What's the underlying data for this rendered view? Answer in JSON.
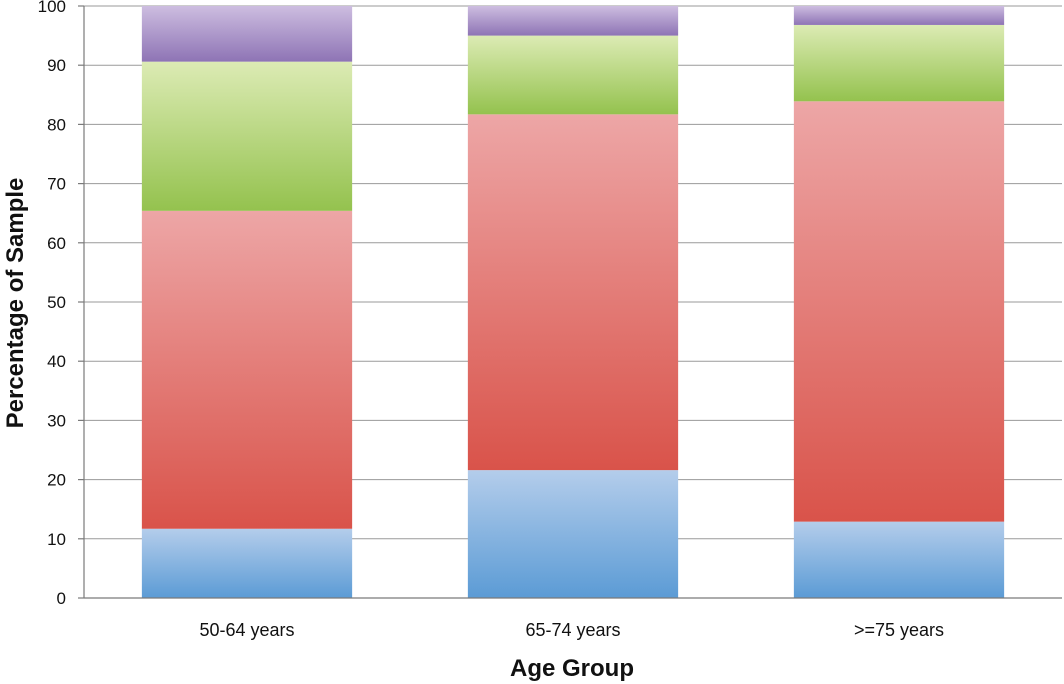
{
  "chart_data": {
    "type": "bar",
    "stacked": true,
    "title": "",
    "xlabel": "Age Group",
    "ylabel": "Percentage of Sample",
    "ylim": [
      0,
      100
    ],
    "yticks": [
      0,
      10,
      20,
      30,
      40,
      50,
      60,
      70,
      80,
      90,
      100
    ],
    "grid": true,
    "legend": "none",
    "categories": [
      "50-64 years",
      "65-74 years",
      ">=75 years"
    ],
    "series": [
      {
        "values": [
          11.7,
          21.6,
          12.9
        ],
        "color": "#5b9bd5",
        "color_light": "#b4cdeb"
      },
      {
        "values": [
          53.7,
          60.1,
          71.0
        ],
        "color": "#d9534a",
        "color_light": "#eda6a6"
      },
      {
        "values": [
          25.2,
          13.3,
          12.9
        ],
        "color": "#94c24e",
        "color_light": "#dcebb4"
      },
      {
        "values": [
          9.4,
          5.0,
          3.2
        ],
        "color": "#8e74b5",
        "color_light": "#cdbde0"
      }
    ]
  }
}
